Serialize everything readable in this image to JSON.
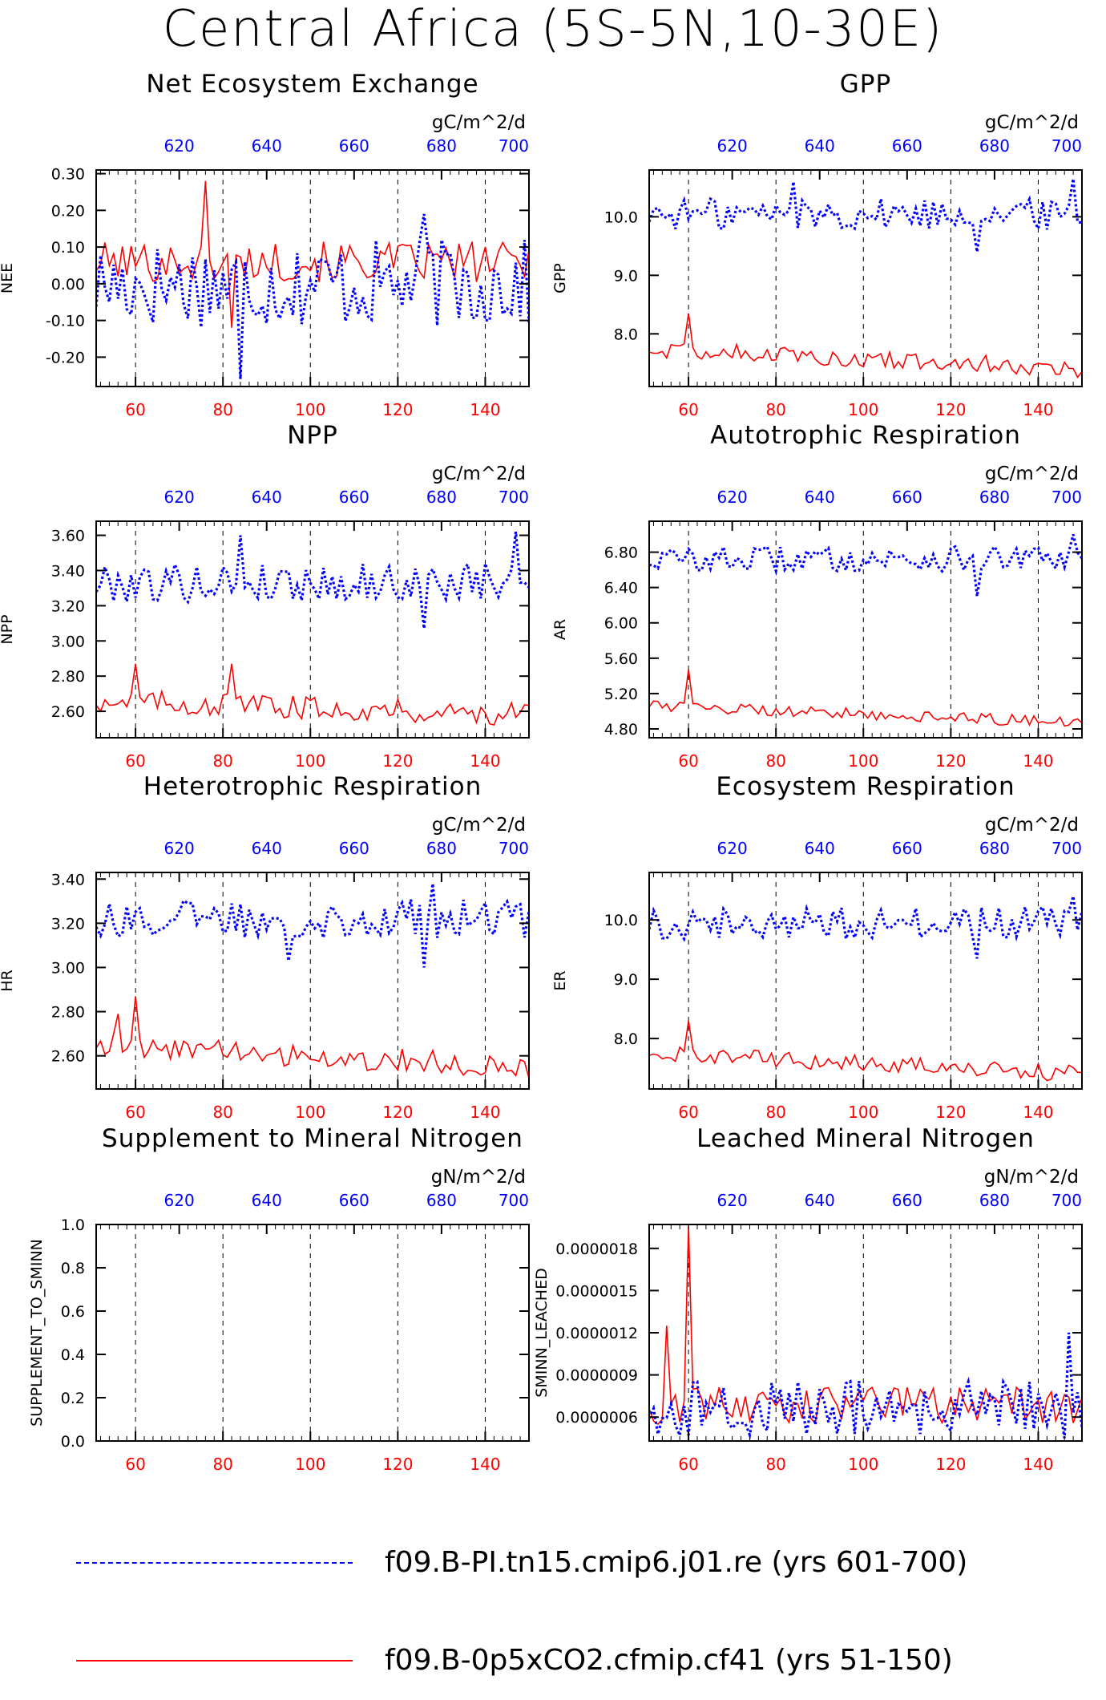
{
  "title": "Central Africa (5S-5N,10-30E)",
  "series": [
    {
      "name": "f09.B-PI.tn15.cmip6.j01.re (yrs 601-700)",
      "color": "#0000ff",
      "dash": "dashed",
      "axis": "top"
    },
    {
      "name": "f09.B-0p5xCO2.cfmip.cf41 (yrs 51-150)",
      "color": "#ff0000",
      "dash": "solid",
      "axis": "bottom"
    }
  ],
  "chart_data": [
    {
      "type": "line",
      "title": "Net Ecosystem Exchange",
      "units": "gC/m^2/d",
      "ylabel": "NEE",
      "x_bottom": [
        51,
        150
      ],
      "x_top": [
        601,
        700
      ],
      "bottom_ticks": [
        60,
        80,
        100,
        120,
        140
      ],
      "top_ticks": [
        620,
        640,
        660,
        680,
        700
      ],
      "ylim": [
        -0.28,
        0.31
      ],
      "yticks": [
        -0.2,
        -0.1,
        0,
        0.1,
        0.2,
        0.3
      ],
      "ytick_labels": [
        "-0.20",
        "-0.10",
        "0.00",
        "0.10",
        "0.20",
        "0.30"
      ],
      "red_base": 0.06,
      "red_amp": 0.05,
      "red_spikes": [
        [
          76,
          0.28
        ],
        [
          82,
          -0.12
        ]
      ],
      "blue_base": 0.0,
      "blue_amp": 0.11,
      "blue_spikes": [
        [
          84,
          -0.26
        ],
        [
          126,
          0.19
        ]
      ]
    },
    {
      "type": "line",
      "title": "GPP",
      "units": "gC/m^2/d",
      "ylabel": "GPP",
      "x_bottom": [
        51,
        150
      ],
      "x_top": [
        601,
        700
      ],
      "bottom_ticks": [
        60,
        80,
        100,
        120,
        140
      ],
      "top_ticks": [
        620,
        640,
        660,
        680,
        700
      ],
      "ylim": [
        7.1,
        10.8
      ],
      "yticks": [
        8,
        9,
        10
      ],
      "ytick_labels": [
        "8.0",
        "9.0",
        "10.0"
      ],
      "red_base": 7.75,
      "red_amp": 0.14,
      "red_trend": -0.35,
      "red_spikes": [
        [
          60,
          8.35
        ]
      ],
      "blue_base": 10.05,
      "blue_amp": 0.25,
      "blue_spikes": [
        [
          84,
          10.6
        ],
        [
          126,
          9.4
        ],
        [
          148,
          10.65
        ]
      ]
    },
    {
      "type": "line",
      "title": "NPP",
      "units": "gC/m^2/d",
      "ylabel": "NPP",
      "x_bottom": [
        51,
        150
      ],
      "x_top": [
        601,
        700
      ],
      "bottom_ticks": [
        60,
        80,
        100,
        120,
        140
      ],
      "top_ticks": [
        620,
        640,
        660,
        680,
        700
      ],
      "ylim": [
        2.45,
        3.68
      ],
      "yticks": [
        2.6,
        2.8,
        3.0,
        3.2,
        3.4,
        3.6
      ],
      "ytick_labels": [
        "2.60",
        "2.80",
        "3.00",
        "3.20",
        "3.40",
        "3.60"
      ],
      "red_base": 2.66,
      "red_amp": 0.06,
      "red_trend": -0.08,
      "red_spikes": [
        [
          60,
          2.87
        ],
        [
          82,
          2.87
        ]
      ],
      "blue_base": 3.33,
      "blue_amp": 0.1,
      "blue_spikes": [
        [
          84,
          3.6
        ],
        [
          126,
          3.07
        ],
        [
          147,
          3.62
        ]
      ]
    },
    {
      "type": "line",
      "title": "Autotrophic Respiration",
      "units": "gC/m^2/d",
      "ylabel": "AR",
      "x_bottom": [
        51,
        150
      ],
      "x_top": [
        601,
        700
      ],
      "bottom_ticks": [
        60,
        80,
        100,
        120,
        140
      ],
      "top_ticks": [
        620,
        640,
        660,
        680,
        700
      ],
      "ylim": [
        4.7,
        7.15
      ],
      "yticks": [
        4.8,
        5.2,
        5.6,
        6.0,
        6.4,
        6.8
      ],
      "ytick_labels": [
        "4.80",
        "5.20",
        "5.60",
        "6.00",
        "6.40",
        "6.80"
      ],
      "red_base": 5.07,
      "red_amp": 0.06,
      "red_trend": -0.2,
      "red_spikes": [
        [
          60,
          5.47
        ]
      ],
      "blue_base": 6.72,
      "blue_amp": 0.13,
      "blue_spikes": [
        [
          126,
          6.3
        ],
        [
          148,
          7.0
        ]
      ]
    },
    {
      "type": "line",
      "title": "Heterotrophic Respiration",
      "units": "gC/m^2/d",
      "ylabel": "HR",
      "x_bottom": [
        51,
        150
      ],
      "x_top": [
        601,
        700
      ],
      "bottom_ticks": [
        60,
        80,
        100,
        120,
        140
      ],
      "top_ticks": [
        620,
        640,
        660,
        680,
        700
      ],
      "ylim": [
        2.45,
        3.43
      ],
      "yticks": [
        2.6,
        2.8,
        3.0,
        3.2,
        3.4
      ],
      "ytick_labels": [
        "2.60",
        "2.80",
        "3.00",
        "3.20",
        "3.40"
      ],
      "red_base": 2.65,
      "red_amp": 0.05,
      "red_trend": -0.1,
      "red_spikes": [
        [
          60,
          2.87
        ],
        [
          56,
          2.79
        ]
      ],
      "blue_base": 3.22,
      "blue_amp": 0.08,
      "blue_spikes": [
        [
          95,
          3.03
        ],
        [
          128,
          3.38
        ],
        [
          126,
          3.0
        ]
      ]
    },
    {
      "type": "line",
      "title": "Ecosystem Respiration",
      "units": "gC/m^2/d",
      "ylabel": "ER",
      "x_bottom": [
        51,
        150
      ],
      "x_top": [
        601,
        700
      ],
      "bottom_ticks": [
        60,
        80,
        100,
        120,
        140
      ],
      "top_ticks": [
        620,
        640,
        660,
        680,
        700
      ],
      "ylim": [
        7.15,
        10.8
      ],
      "yticks": [
        8,
        9,
        10
      ],
      "ytick_labels": [
        "8.0",
        "9.0",
        "10.0"
      ],
      "red_base": 7.75,
      "red_amp": 0.13,
      "red_trend": -0.35,
      "red_spikes": [
        [
          60,
          8.3
        ]
      ],
      "blue_base": 9.95,
      "blue_amp": 0.25,
      "blue_spikes": [
        [
          126,
          9.35
        ],
        [
          148,
          10.4
        ]
      ]
    },
    {
      "type": "line",
      "title": "Supplement to Mineral Nitrogen",
      "units": "gN/m^2/d",
      "ylabel": "SUPPLEMENT_TO_SMINN",
      "x_bottom": [
        51,
        150
      ],
      "x_top": [
        601,
        700
      ],
      "bottom_ticks": [
        60,
        80,
        100,
        120,
        140
      ],
      "top_ticks": [
        620,
        640,
        660,
        680,
        700
      ],
      "ylim": [
        0,
        1
      ],
      "yticks": [
        0,
        0.2,
        0.4,
        0.6,
        0.8,
        1.0
      ],
      "ytick_labels": [
        "0.0",
        "0.2",
        "0.4",
        "0.6",
        "0.8",
        "1.0"
      ],
      "no_data": true
    },
    {
      "type": "line",
      "title": "Leached Mineral Nitrogen",
      "units": "gN/m^2/d",
      "ylabel": "SMINN_LEACHED",
      "x_bottom": [
        51,
        150
      ],
      "x_top": [
        601,
        700
      ],
      "bottom_ticks": [
        60,
        80,
        100,
        120,
        140
      ],
      "top_ticks": [
        620,
        640,
        660,
        680,
        700
      ],
      "ylim": [
        4.3e-07,
        1.97e-06
      ],
      "yticks": [
        6e-07,
        9e-07,
        1.2e-06,
        1.5e-06,
        1.8e-06
      ],
      "ytick_labels": [
        "0.0000006",
        "0.0000009",
        "0.0000012",
        "0.0000015",
        "0.0000018"
      ],
      "red_base": 6.8e-07,
      "red_amp": 1.2e-07,
      "red_spikes": [
        [
          60,
          1.96e-06
        ],
        [
          55,
          1.25e-06
        ]
      ],
      "blue_base": 6.6e-07,
      "blue_amp": 1.8e-07,
      "blue_spikes": [
        [
          147,
          1.2e-06
        ],
        [
          146,
          4.5e-07
        ]
      ]
    }
  ]
}
